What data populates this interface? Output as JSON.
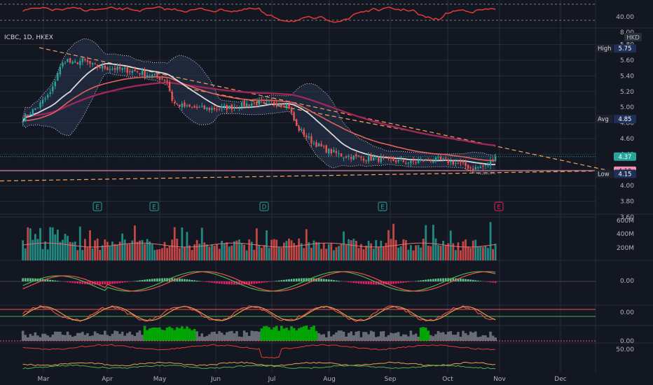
{
  "header": {
    "ticker": "ICBC, 1D, HKEX",
    "currency": "HKD"
  },
  "colors": {
    "up": "#26a69a",
    "down": "#ef5350",
    "grid": "#2a2e39",
    "text": "#b2b5be",
    "bg": "#131722",
    "dashed_orange": "#f7a35c",
    "ema_pink": "#9c2758",
    "ema_red": "#e0625e",
    "ma_white": "#d9d9d9",
    "bb": "#cfd3dc",
    "macd_green": "#5ec28a",
    "macd_red": "#e91e63",
    "osc_green": "#00c000"
  },
  "price_axis": {
    "ticks": [
      "5.80",
      "5.60",
      "5.40",
      "5.20",
      "5.00",
      "4.80",
      "4.60",
      "4.40",
      "4.20",
      "4.00",
      "3.80",
      "3.60"
    ],
    "tags": [
      {
        "label": "High",
        "value": "5.75",
        "style": "navy"
      },
      {
        "label": "Avg",
        "value": "4.85",
        "style": "navy"
      },
      {
        "label": "",
        "value": "4.37",
        "style": "green"
      },
      {
        "label": "",
        "value": "4.19",
        "style": "pink"
      },
      {
        "label": "Low",
        "value": "4.15",
        "style": "navy"
      }
    ]
  },
  "top_pane": {
    "ticks": [
      "40.00",
      "8.00"
    ]
  },
  "volume_axis": {
    "ticks": [
      "600M",
      "400M",
      "200M"
    ]
  },
  "pane_ticks": [
    "0.00",
    "0.00",
    "0.00",
    "50.00"
  ],
  "months": [
    "Mar",
    "Apr",
    "May",
    "Jun",
    "Jul",
    "Aug",
    "Sep",
    "Oct",
    "Nov",
    "Dec"
  ],
  "events": [
    "E",
    "E",
    "D",
    "E",
    "E"
  ],
  "chart_data": {
    "type": "candlestick",
    "symbol": "ICBC",
    "interval": "1D",
    "exchange": "HKEX",
    "ylim": [
      3.6,
      5.85
    ],
    "high": 5.75,
    "avg": 4.85,
    "last": 4.37,
    "low": 4.15,
    "level": 4.19,
    "close_keypoints": [
      [
        "Feb 20",
        4.86
      ],
      [
        "Feb 27",
        5.0
      ],
      [
        "Mar 5",
        5.2
      ],
      [
        "Mar 8",
        5.45
      ],
      [
        "Mar 12",
        5.62
      ],
      [
        "Mar 15",
        5.55
      ],
      [
        "Mar 20",
        5.6
      ],
      [
        "Mar 26",
        5.52
      ],
      [
        "Apr 2",
        5.5
      ],
      [
        "Apr 9",
        5.48
      ],
      [
        "Apr 16",
        5.45
      ],
      [
        "Apr 23",
        5.4
      ],
      [
        "Apr 30",
        5.35
      ],
      [
        "May 3",
        5.05
      ],
      [
        "May 10",
        5.0
      ],
      [
        "May 20",
        4.98
      ],
      [
        "May 31",
        5.0
      ],
      [
        "Jun 10",
        5.05
      ],
      [
        "Jun 20",
        5.06
      ],
      [
        "Jun 28",
        5.03
      ],
      [
        "Jul 2",
        4.75
      ],
      [
        "Jul 10",
        4.55
      ],
      [
        "Jul 17",
        4.45
      ],
      [
        "Jul 25",
        4.38
      ],
      [
        "Aug 5",
        4.35
      ],
      [
        "Aug 15",
        4.33
      ],
      [
        "Aug 26",
        4.3
      ],
      [
        "Sep 5",
        4.33
      ],
      [
        "Sep 12",
        4.32
      ],
      [
        "Sep 19",
        4.28
      ],
      [
        "Sep 26",
        4.22
      ],
      [
        "Oct 2",
        4.25
      ],
      [
        "Oct 7",
        4.37
      ]
    ]
  }
}
